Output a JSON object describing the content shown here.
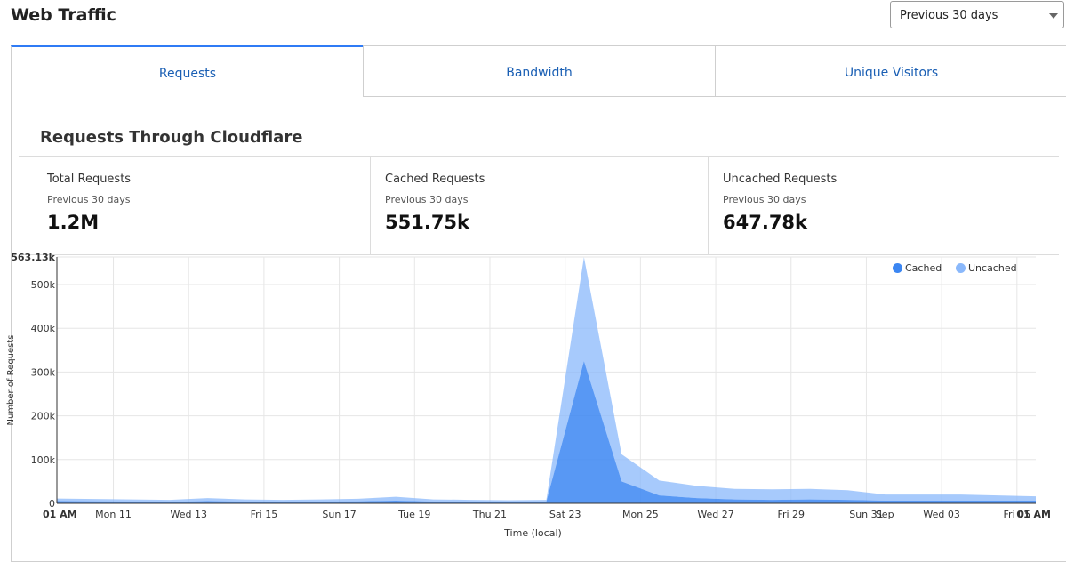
{
  "header": {
    "title": "Web Traffic",
    "range_select": "Previous 30 days"
  },
  "tabs": [
    {
      "label": "Requests"
    },
    {
      "label": "Bandwidth"
    },
    {
      "label": "Unique Visitors"
    }
  ],
  "section": {
    "title": "Requests Through Cloudflare"
  },
  "stats": [
    {
      "label": "Total Requests",
      "sub": "Previous 30 days",
      "value": "1.2M"
    },
    {
      "label": "Cached Requests",
      "sub": "Previous 30 days",
      "value": "551.75k"
    },
    {
      "label": "Uncached Requests",
      "sub": "Previous 30 days",
      "value": "647.78k"
    }
  ],
  "colors": {
    "accent": "#2f7bf5",
    "cached": "#3b86f2",
    "uncached": "#8ab8fb",
    "tab_text": "#1a5fb4"
  },
  "chart_data": {
    "type": "area",
    "stacked": true,
    "xlabel": "Time (local)",
    "ylabel": "Number of Requests",
    "y_max_label": "563.13k",
    "ylim": [
      0,
      563130
    ],
    "yticks": [
      0,
      100000,
      200000,
      300000,
      400000,
      500000
    ],
    "ytick_labels": [
      "0",
      "100k",
      "200k",
      "300k",
      "400k",
      "500k"
    ],
    "x_tick_labels": [
      "01 AM",
      "Mon 11",
      "Wed 13",
      "Fri 15",
      "Sun 17",
      "Tue 19",
      "Thu 21",
      "Sat 23",
      "Mon 25",
      "Wed 27",
      "Fri 29",
      "Sun 31",
      "Sep",
      "Wed 03",
      "Fri 05",
      "01 AM"
    ],
    "x_tick_positions_days": [
      0,
      1.5,
      3.5,
      5.5,
      7.5,
      9.5,
      11.5,
      13.5,
      15.5,
      17.5,
      19.5,
      21.5,
      21.99,
      23.5,
      25.5,
      25.99
    ],
    "x_days": [
      0,
      1,
      2,
      3,
      4,
      5,
      6,
      7,
      8,
      9,
      10,
      11,
      12,
      13,
      14,
      15,
      16,
      17,
      18,
      19,
      20,
      21,
      22,
      23,
      24,
      25,
      26
    ],
    "legend_position": "top-right",
    "series": [
      {
        "name": "Cached",
        "color": "#3b86f2",
        "values": [
          5000,
          4500,
          4000,
          3500,
          5000,
          4000,
          3500,
          4000,
          4500,
          6000,
          4000,
          3500,
          3000,
          4000,
          325000,
          50000,
          18000,
          12000,
          9000,
          8000,
          9000,
          8000,
          6000,
          6000,
          6000,
          6000,
          6000
        ]
      },
      {
        "name": "Uncached",
        "color": "#8ab8fb",
        "values": [
          6000,
          5500,
          5000,
          4500,
          7000,
          5000,
          4500,
          5000,
          6000,
          9000,
          5000,
          4500,
          4000,
          4000,
          238000,
          62000,
          34000,
          28000,
          24000,
          24000,
          24000,
          22000,
          14000,
          14000,
          14000,
          12000,
          10000
        ]
      }
    ]
  }
}
